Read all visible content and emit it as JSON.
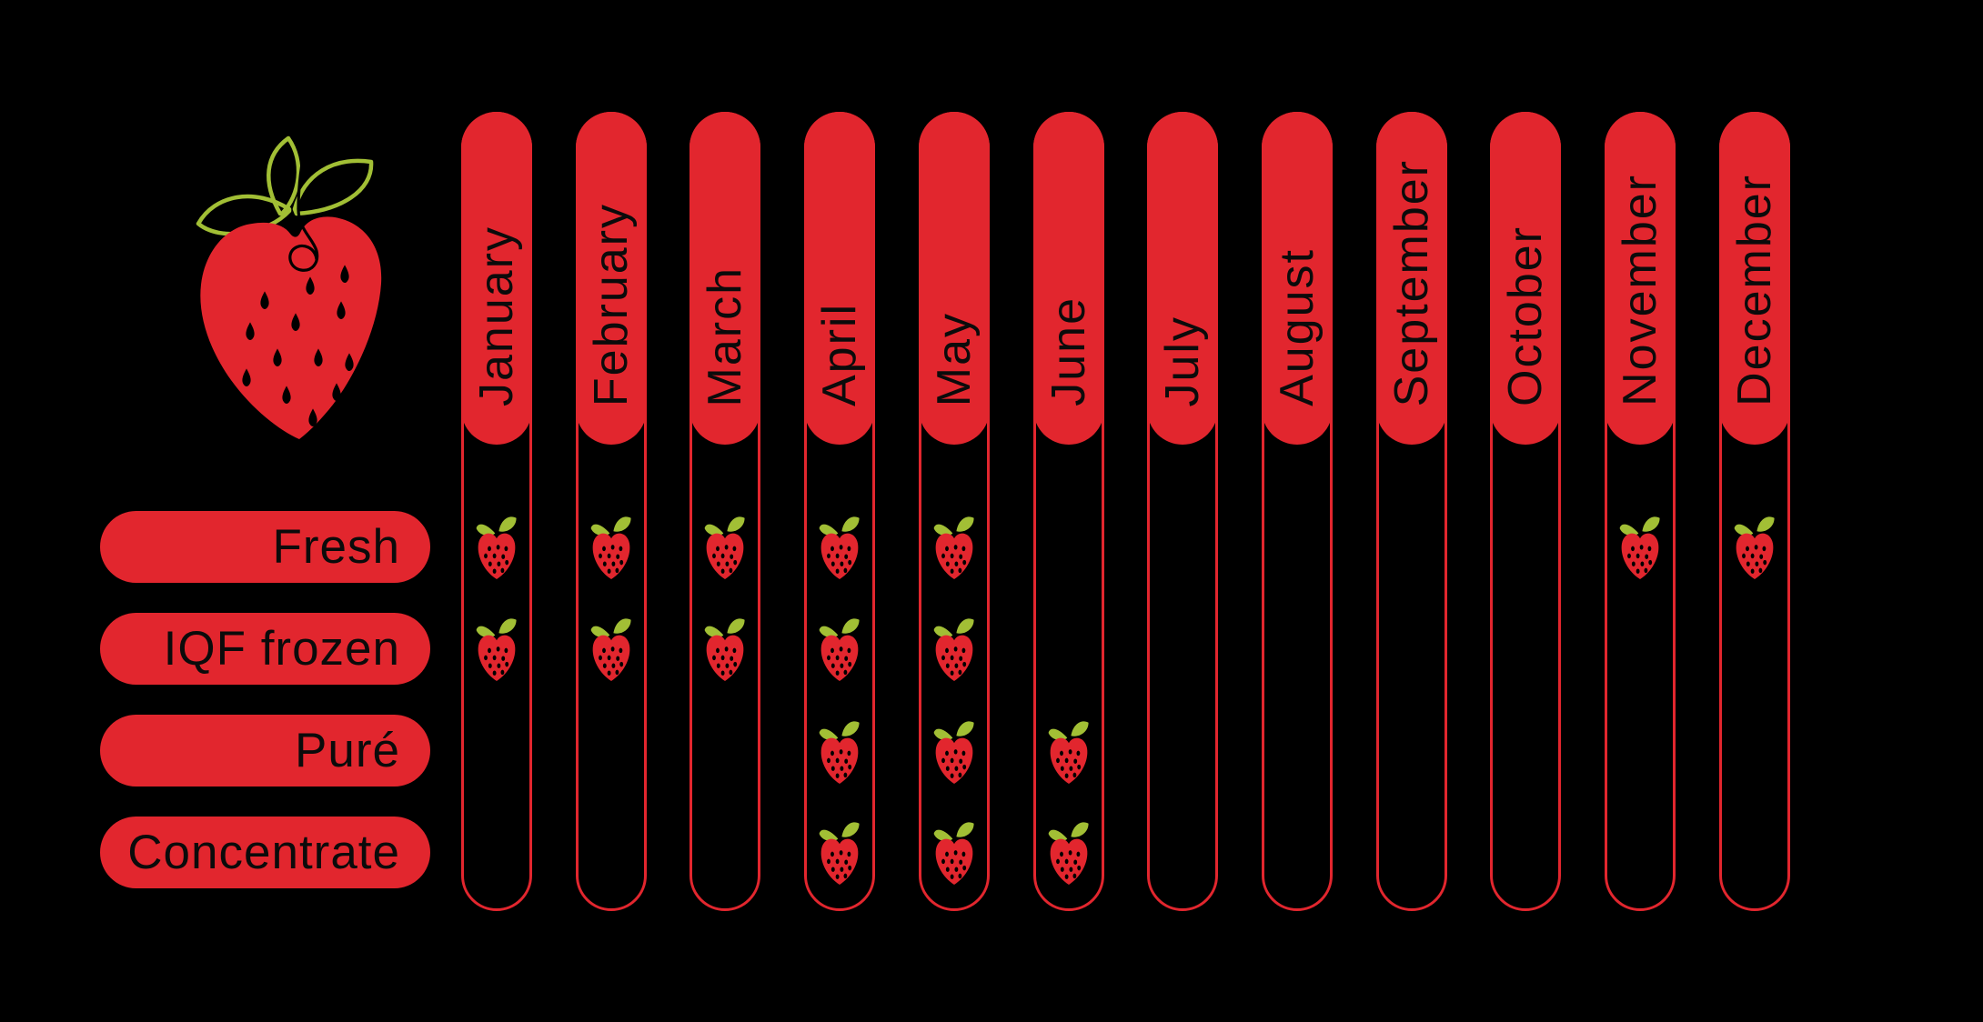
{
  "colors": {
    "red": "#e2262e",
    "leaf_green": "#a2bf35",
    "background": "#000000",
    "text": "#0b0b0b"
  },
  "logo": {
    "name": "strawberry-logo"
  },
  "chart_data": {
    "type": "heatmap",
    "title": "",
    "categories": [
      "January",
      "February",
      "March",
      "April",
      "May",
      "June",
      "July",
      "August",
      "September",
      "October",
      "November",
      "December"
    ],
    "rows": [
      "Fresh",
      "IQF frozen",
      "Puré",
      "Concentrate"
    ],
    "matrix": [
      [
        1,
        1,
        1,
        1,
        1,
        0,
        0,
        0,
        0,
        0,
        1,
        1
      ],
      [
        1,
        1,
        1,
        1,
        1,
        0,
        0,
        0,
        0,
        0,
        0,
        0
      ],
      [
        0,
        0,
        0,
        1,
        1,
        1,
        0,
        0,
        0,
        0,
        0,
        0
      ],
      [
        0,
        0,
        0,
        1,
        1,
        1,
        0,
        0,
        0,
        0,
        0,
        0
      ]
    ],
    "marker": "strawberry-icon",
    "legend_position": "left",
    "grid": false
  }
}
